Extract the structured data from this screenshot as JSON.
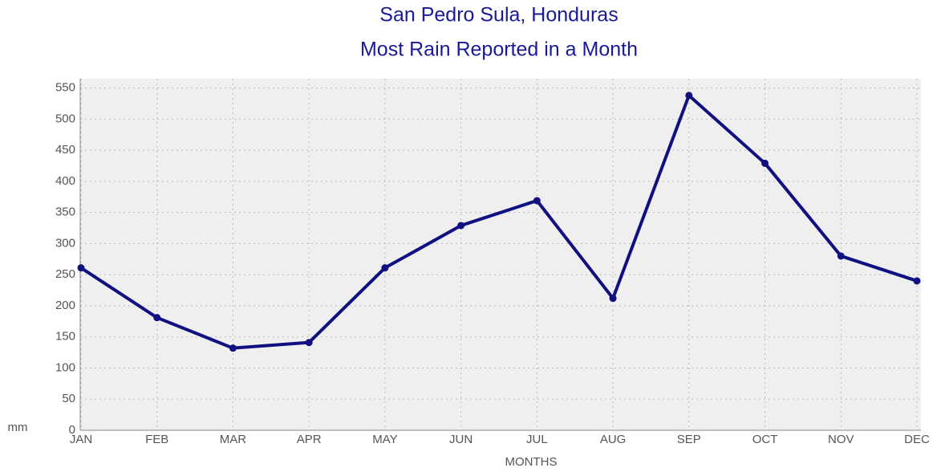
{
  "chart_data": {
    "type": "line",
    "title": "San Pedro Sula, Honduras",
    "subtitle": "Most Rain Reported in a Month",
    "y_label": "mm",
    "x_label": "MONTHS",
    "categories": [
      "JAN",
      "FEB",
      "MAR",
      "APR",
      "MAY",
      "JUN",
      "JUL",
      "AUG",
      "SEP",
      "OCT",
      "NOV",
      "DEC"
    ],
    "series": [
      {
        "name": "Most Rain",
        "color": "#101080",
        "values": [
          261,
          181,
          132,
          141,
          261,
          329,
          369,
          212,
          538,
          429,
          280,
          240
        ]
      }
    ],
    "ylim": [
      0,
      565
    ],
    "yticks": [
      0,
      50,
      100,
      150,
      200,
      250,
      300,
      350,
      400,
      450,
      500,
      550
    ],
    "grid": true
  }
}
